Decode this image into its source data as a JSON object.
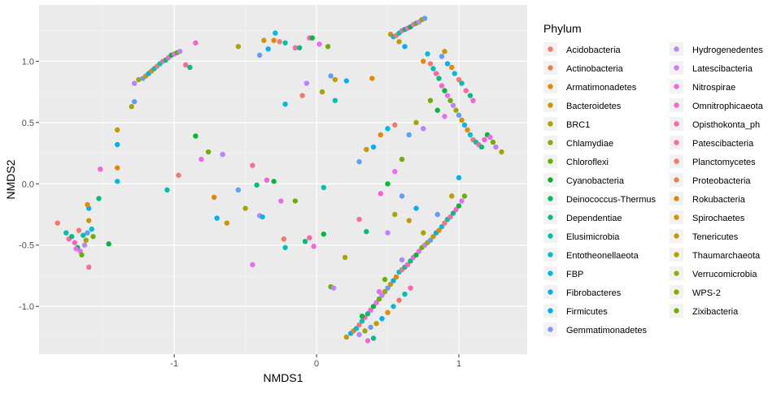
{
  "chart_data": {
    "type": "scatter",
    "xlabel": "NMDS1",
    "ylabel": "NMDS2",
    "xlim": [
      -1.95,
      1.48
    ],
    "ylim": [
      -1.39,
      1.46
    ],
    "x_ticks": [
      -1,
      0,
      1
    ],
    "x_tick_labels": [
      "-1",
      "0",
      "1"
    ],
    "y_ticks": [
      -1.0,
      -0.5,
      0.0,
      0.5,
      1.0
    ],
    "y_tick_labels": [
      "-1.0",
      "-0.5",
      "0.0",
      "0.5",
      "1.0"
    ],
    "grid": true,
    "legend": {
      "title": "Phylum",
      "placement": "right",
      "entries": [
        {
          "name": "Acidobacteria",
          "color": "#F8766D"
        },
        {
          "name": "Actinobacteria",
          "color": "#EC8239"
        },
        {
          "name": "Armatimonadetes",
          "color": "#DB8E00"
        },
        {
          "name": "Bacteroidetes",
          "color": "#C79800"
        },
        {
          "name": "BRC1",
          "color": "#AEA200"
        },
        {
          "name": "Chlamydiae",
          "color": "#8FAA00"
        },
        {
          "name": "Chloroflexi",
          "color": "#64B200"
        },
        {
          "name": "Cyanobacteria",
          "color": "#00B81B"
        },
        {
          "name": "Deinococcus-Thermus",
          "color": "#00BD5C"
        },
        {
          "name": "Dependentiae",
          "color": "#00C085"
        },
        {
          "name": "Elusimicrobia",
          "color": "#00C1A7"
        },
        {
          "name": "Entotheonellaeota",
          "color": "#00BFC4"
        },
        {
          "name": "FBP",
          "color": "#00BADE"
        },
        {
          "name": "Fibrobacteres",
          "color": "#00B2F3"
        },
        {
          "name": "Firmicutes",
          "color": "#00A6FF"
        },
        {
          "name": "Gemmatimonadetes",
          "color": "#7C96FF"
        },
        {
          "name": "Hydrogenedentes",
          "color": "#B385FF"
        },
        {
          "name": "Latescibacteria",
          "color": "#D874FD"
        },
        {
          "name": "Nitrospirae",
          "color": "#EF67EB"
        },
        {
          "name": "Omnitrophicaeota",
          "color": "#FD61D3"
        },
        {
          "name": "Opisthokonta_ph",
          "color": "#FF63B6"
        },
        {
          "name": "Patescibacteria",
          "color": "#FF6B94"
        },
        {
          "name": "Planctomycetes",
          "color": "#F8766D"
        },
        {
          "name": "Proteobacteria",
          "color": "#EF7F49"
        },
        {
          "name": "Rokubacteria",
          "color": "#E58700"
        },
        {
          "name": "Spirochaetes",
          "color": "#D89000"
        },
        {
          "name": "Tenericutes",
          "color": "#C99800"
        },
        {
          "name": "Thaumarchaeota",
          "color": "#B79F00"
        },
        {
          "name": "Verrucomicrobia",
          "color": "#A3A500"
        },
        {
          "name": "WPS-2",
          "color": "#8AAB00"
        },
        {
          "name": "Zixibacteria",
          "color": "#6BB100"
        }
      ]
    },
    "point_palette": [
      "#F8766D",
      "#E58700",
      "#C99800",
      "#A3A500",
      "#6BB100",
      "#00BA38",
      "#00BF7D",
      "#00C0AF",
      "#00BCD8",
      "#00B0F6",
      "#619CFF",
      "#B983FF",
      "#E76BF3",
      "#FD61D1",
      "#FF67A4"
    ],
    "points": [
      [
        -1.82,
        -0.32
      ],
      [
        -1.76,
        -0.4
      ],
      [
        -1.74,
        -0.45
      ],
      [
        -1.72,
        -0.43
      ],
      [
        -1.7,
        -0.48
      ],
      [
        -1.68,
        -0.52
      ],
      [
        -1.66,
        -0.55
      ],
      [
        -1.65,
        -0.58
      ],
      [
        -1.63,
        -0.5
      ],
      [
        -1.62,
        -0.46
      ],
      [
        -1.61,
        -0.4
      ],
      [
        -1.6,
        -0.3
      ],
      [
        -1.6,
        -0.2
      ],
      [
        -1.61,
        -0.17
      ],
      [
        -1.58,
        -0.37
      ],
      [
        -1.67,
        -0.38
      ],
      [
        -1.64,
        -0.42
      ],
      [
        -1.6,
        -0.68
      ],
      [
        -1.53,
        -0.12
      ],
      [
        -1.52,
        0.12
      ],
      [
        -1.46,
        -0.49
      ],
      [
        -1.69,
        -0.53
      ],
      [
        -1.57,
        -0.43
      ],
      [
        -1.28,
        0.82
      ],
      [
        -1.25,
        0.85
      ],
      [
        -1.22,
        0.86
      ],
      [
        -1.2,
        0.88
      ],
      [
        -1.18,
        0.9
      ],
      [
        -1.16,
        0.92
      ],
      [
        -1.14,
        0.94
      ],
      [
        -1.12,
        0.96
      ],
      [
        -1.1,
        0.98
      ],
      [
        -1.08,
        1.0
      ],
      [
        -1.06,
        1.01
      ],
      [
        -1.04,
        1.03
      ],
      [
        -1.02,
        1.05
      ],
      [
        -1.0,
        1.06
      ],
      [
        -0.98,
        1.07
      ],
      [
        -0.96,
        1.08
      ],
      [
        -1.3,
        0.63
      ],
      [
        -1.28,
        0.67
      ],
      [
        -1.4,
        0.44
      ],
      [
        -1.4,
        0.32
      ],
      [
        -1.4,
        0.13
      ],
      [
        -1.4,
        0.02
      ],
      [
        -0.97,
        0.07
      ],
      [
        -1.05,
        -0.05
      ],
      [
        -0.92,
        0.97
      ],
      [
        -0.89,
        0.95
      ],
      [
        -0.85,
        1.15
      ],
      [
        -0.85,
        0.39
      ],
      [
        -0.81,
        0.2
      ],
      [
        -0.76,
        0.26
      ],
      [
        -0.66,
        0.24
      ],
      [
        -0.55,
        1.12
      ],
      [
        -0.4,
        1.05
      ],
      [
        -0.37,
        1.17
      ],
      [
        -0.34,
        1.1
      ],
      [
        -0.3,
        1.17
      ],
      [
        -0.29,
        1.23
      ],
      [
        -0.26,
        1.16
      ],
      [
        -0.22,
        1.15
      ],
      [
        -0.15,
        1.11
      ],
      [
        -0.12,
        1.11
      ],
      [
        -0.05,
        1.19
      ],
      [
        -0.03,
        1.19
      ],
      [
        0.02,
        1.14
      ],
      [
        0.08,
        1.12
      ],
      [
        -0.07,
        0.82
      ],
      [
        0.04,
        0.75
      ],
      [
        0.1,
        0.88
      ],
      [
        0.13,
        0.85
      ],
      [
        0.21,
        0.84
      ],
      [
        0.39,
        0.86
      ],
      [
        -0.22,
        0.65
      ],
      [
        -0.1,
        0.72
      ],
      [
        0.13,
        0.68
      ],
      [
        -0.45,
        0.15
      ],
      [
        -0.42,
        -0.01
      ],
      [
        -0.35,
        0.03
      ],
      [
        -0.3,
        0.02
      ],
      [
        -0.25,
        -0.14
      ],
      [
        -0.15,
        -0.14
      ],
      [
        -0.4,
        -0.26
      ],
      [
        -0.5,
        -0.2
      ],
      [
        -0.55,
        -0.05
      ],
      [
        -0.63,
        -0.32
      ],
      [
        -0.7,
        -0.28
      ],
      [
        -0.72,
        -0.11
      ],
      [
        -0.38,
        -0.27
      ],
      [
        -0.23,
        -0.45
      ],
      [
        -0.22,
        -0.52
      ],
      [
        -0.05,
        -0.44
      ],
      [
        -0.08,
        -0.47
      ],
      [
        -0.02,
        -0.51
      ],
      [
        0.05,
        -0.41
      ],
      [
        -0.45,
        -0.66
      ],
      [
        0.1,
        -0.84
      ],
      [
        0.12,
        -0.85
      ],
      [
        0.2,
        -0.6
      ],
      [
        0.3,
        0.18
      ],
      [
        0.35,
        0.28
      ],
      [
        0.4,
        0.3
      ],
      [
        0.45,
        0.4
      ],
      [
        0.5,
        0.45
      ],
      [
        0.55,
        0.48
      ],
      [
        0.05,
        -0.03
      ],
      [
        0.3,
        -0.29
      ],
      [
        0.35,
        -0.39
      ],
      [
        0.45,
        -0.08
      ],
      [
        0.5,
        0.0
      ],
      [
        0.55,
        0.1
      ],
      [
        0.6,
        0.2
      ],
      [
        0.5,
        -0.4
      ],
      [
        0.55,
        -0.25
      ],
      [
        0.6,
        -0.1
      ],
      [
        0.65,
        -0.3
      ],
      [
        0.7,
        -0.2
      ],
      [
        0.52,
        1.22
      ],
      [
        0.54,
        1.2
      ],
      [
        0.56,
        1.21
      ],
      [
        0.58,
        1.23
      ],
      [
        0.6,
        1.25
      ],
      [
        0.62,
        1.26
      ],
      [
        0.64,
        1.27
      ],
      [
        0.66,
        1.28
      ],
      [
        0.68,
        1.3
      ],
      [
        0.7,
        1.31
      ],
      [
        0.72,
        1.32
      ],
      [
        0.74,
        1.34
      ],
      [
        0.76,
        1.35
      ],
      [
        0.58,
        1.16
      ],
      [
        0.62,
        1.12
      ],
      [
        0.75,
        1.0
      ],
      [
        0.78,
        1.06
      ],
      [
        0.8,
        0.98
      ],
      [
        0.82,
        0.94
      ],
      [
        0.84,
        0.9
      ],
      [
        0.86,
        0.86
      ],
      [
        0.88,
        0.8
      ],
      [
        0.9,
        0.76
      ],
      [
        0.92,
        0.72
      ],
      [
        0.94,
        0.68
      ],
      [
        0.96,
        0.64
      ],
      [
        0.98,
        0.6
      ],
      [
        1.0,
        0.56
      ],
      [
        1.02,
        0.52
      ],
      [
        1.04,
        0.48
      ],
      [
        1.06,
        0.44
      ],
      [
        1.08,
        0.4
      ],
      [
        1.1,
        0.36
      ],
      [
        1.12,
        0.34
      ],
      [
        1.14,
        0.32
      ],
      [
        1.16,
        0.3
      ],
      [
        1.18,
        0.36
      ],
      [
        1.2,
        0.4
      ],
      [
        1.22,
        0.38
      ],
      [
        1.24,
        0.34
      ],
      [
        1.26,
        0.3
      ],
      [
        1.3,
        0.26
      ],
      [
        0.88,
        1.04
      ],
      [
        0.9,
        1.08
      ],
      [
        0.92,
        0.98
      ],
      [
        0.95,
        0.95
      ],
      [
        0.97,
        0.9
      ],
      [
        1.0,
        0.85
      ],
      [
        1.02,
        0.82
      ],
      [
        1.05,
        0.76
      ],
      [
        1.08,
        0.72
      ],
      [
        1.1,
        0.68
      ],
      [
        0.85,
        0.6
      ],
      [
        0.9,
        0.55
      ],
      [
        0.8,
        0.68
      ],
      [
        0.75,
        0.45
      ],
      [
        0.7,
        0.5
      ],
      [
        0.65,
        0.4
      ],
      [
        0.21,
        -1.25
      ],
      [
        0.24,
        -1.22
      ],
      [
        0.26,
        -1.2
      ],
      [
        0.28,
        -1.18
      ],
      [
        0.3,
        -1.15
      ],
      [
        0.32,
        -1.12
      ],
      [
        0.34,
        -1.09
      ],
      [
        0.36,
        -1.06
      ],
      [
        0.38,
        -1.03
      ],
      [
        0.4,
        -1.0
      ],
      [
        0.42,
        -0.97
      ],
      [
        0.44,
        -0.94
      ],
      [
        0.46,
        -0.91
      ],
      [
        0.48,
        -0.88
      ],
      [
        0.5,
        -0.85
      ],
      [
        0.52,
        -0.82
      ],
      [
        0.54,
        -0.79
      ],
      [
        0.56,
        -0.76
      ],
      [
        0.58,
        -0.72
      ],
      [
        0.6,
        -0.7
      ],
      [
        0.62,
        -0.68
      ],
      [
        0.64,
        -0.66
      ],
      [
        0.66,
        -0.63
      ],
      [
        0.68,
        -0.6
      ],
      [
        0.7,
        -0.58
      ],
      [
        0.72,
        -0.55
      ],
      [
        0.74,
        -0.52
      ],
      [
        0.76,
        -0.5
      ],
      [
        0.78,
        -0.48
      ],
      [
        0.8,
        -0.46
      ],
      [
        0.82,
        -0.43
      ],
      [
        0.84,
        -0.4
      ],
      [
        0.86,
        -0.38
      ],
      [
        0.88,
        -0.35
      ],
      [
        0.9,
        -0.32
      ],
      [
        0.92,
        -0.29
      ],
      [
        0.94,
        -0.27
      ],
      [
        0.96,
        -0.24
      ],
      [
        0.98,
        -0.21
      ],
      [
        1.0,
        -0.18
      ],
      [
        1.02,
        -0.14
      ],
      [
        1.04,
        -0.1
      ],
      [
        0.3,
        -1.23
      ],
      [
        0.34,
        -1.2
      ],
      [
        0.38,
        -1.17
      ],
      [
        0.42,
        -1.14
      ],
      [
        0.46,
        -1.1
      ],
      [
        0.5,
        -1.05
      ],
      [
        0.54,
        -1.0
      ],
      [
        0.58,
        -0.95
      ],
      [
        0.62,
        -0.9
      ],
      [
        0.66,
        -0.85
      ],
      [
        0.4,
        -1.26
      ],
      [
        0.36,
        -1.28
      ],
      [
        0.32,
        -1.08
      ],
      [
        0.44,
        -0.88
      ],
      [
        0.48,
        -0.78
      ],
      [
        0.6,
        -0.62
      ],
      [
        0.75,
        -0.4
      ],
      [
        0.85,
        -0.25
      ],
      [
        0.95,
        -0.1
      ],
      [
        1.0,
        0.05
      ]
    ]
  }
}
